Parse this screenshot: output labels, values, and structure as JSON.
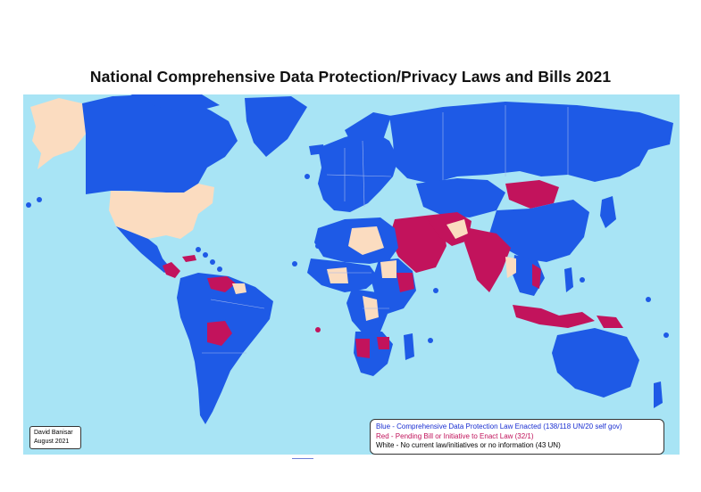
{
  "title": "National Comprehensive Data Protection/Privacy Laws and Bills 2021",
  "credit": {
    "line1": "David Banisar",
    "line2": "August 2021"
  },
  "legend": {
    "blue": "Blue - Comprehensive Data Protection Law Enacted (138/118 UN/20 self gov)",
    "red": "Red - Pending Bill or Initiative to Enact Law (32/1)",
    "white": "White - No current law/initiatives or no information (43 UN)"
  },
  "colors": {
    "ocean": "#a8e4f5",
    "law_enacted": "#1e5ae6",
    "pending_bill": "#c2135c",
    "no_law": "#fbdcc0",
    "border": "#9fb6ee"
  }
}
